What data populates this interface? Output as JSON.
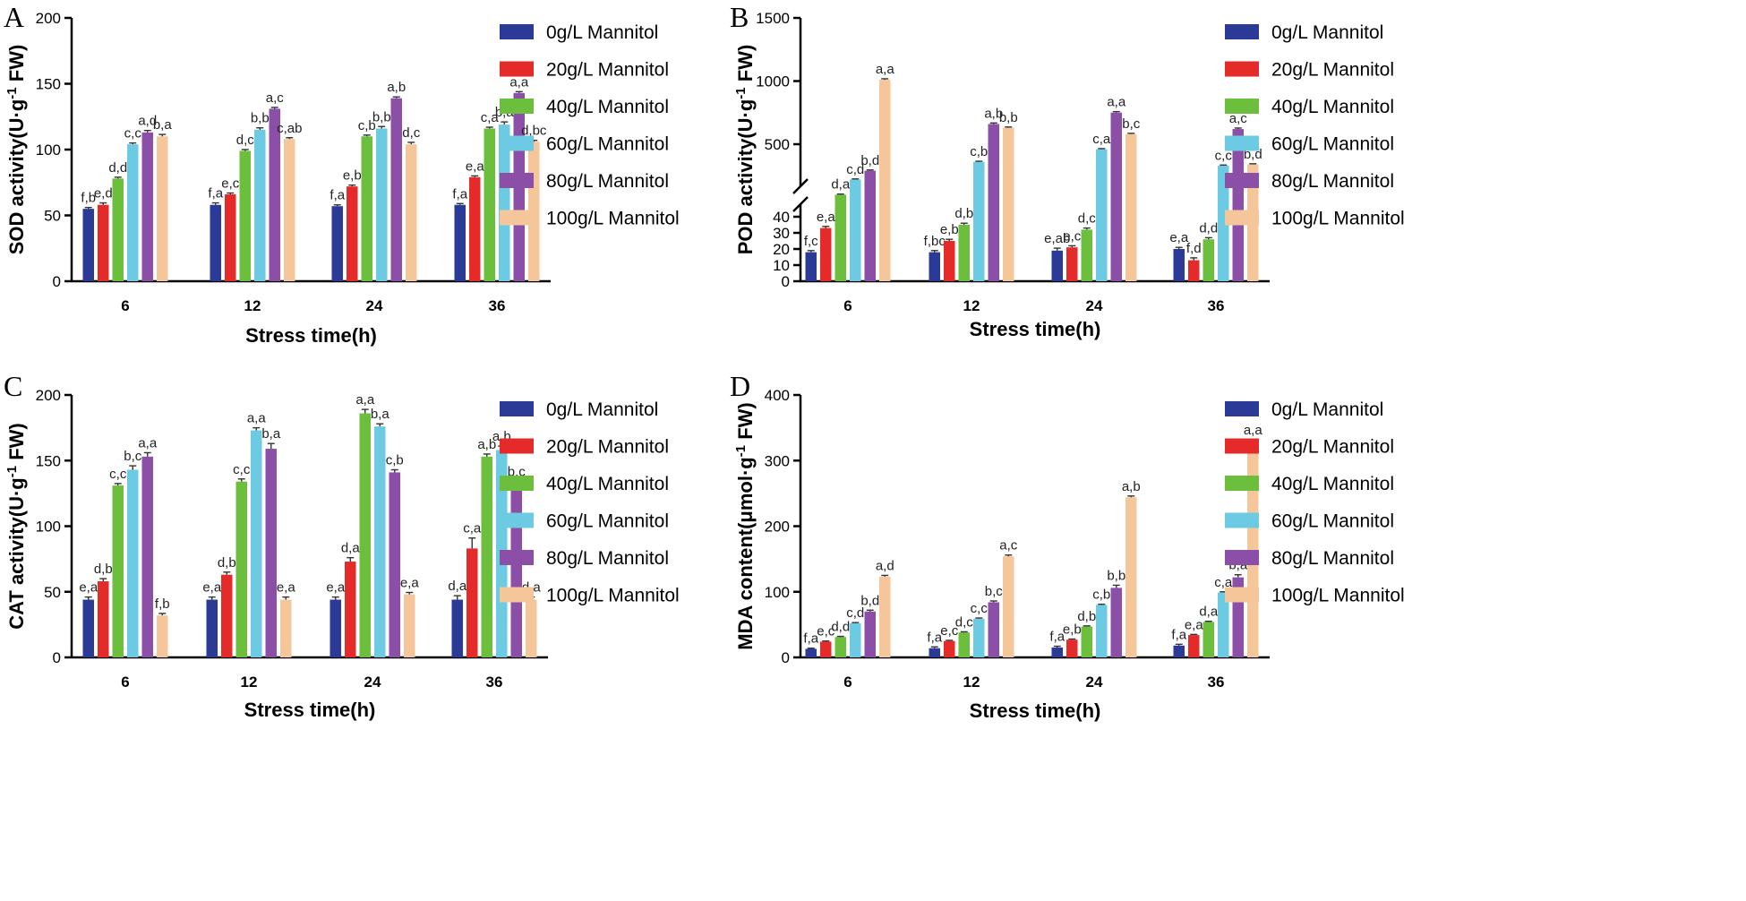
{
  "chart_data": [
    {
      "panel": "A",
      "type": "bar",
      "ylabel": "SOD activity(U·g",
      "ylabel_sup": "-1",
      "ylabel_tail": " FW)",
      "xlabel": "Stress time(h)",
      "categories": [
        "6",
        "12",
        "24",
        "36"
      ],
      "ylim": [
        0,
        200
      ],
      "yticks": [
        "0",
        "50",
        "100",
        "150",
        "200"
      ],
      "series": [
        {
          "name": "0g/L Mannitol",
          "values": [
            55,
            58,
            57,
            58
          ],
          "errors": [
            1,
            1.5,
            1,
            1
          ],
          "labels": [
            "f,b",
            "f,a",
            "f,a",
            "f,a"
          ]
        },
        {
          "name": "20g/L Mannitol",
          "values": [
            58,
            66,
            72,
            79
          ],
          "errors": [
            1.5,
            1,
            1,
            1
          ],
          "labels": [
            "e,d",
            "e,c",
            "e,b",
            "e,a"
          ]
        },
        {
          "name": "40g/L Mannitol",
          "values": [
            78,
            99,
            110,
            116
          ],
          "errors": [
            1,
            1,
            1,
            1
          ],
          "labels": [
            "d,d",
            "d,c",
            "c,b",
            "c,a"
          ]
        },
        {
          "name": "60g/L Mannitol",
          "values": [
            104,
            115,
            116,
            119
          ],
          "errors": [
            1,
            1.5,
            1.5,
            2
          ],
          "labels": [
            "c,c",
            "b,b",
            "b,b",
            "b,a"
          ]
        },
        {
          "name": "80g/L Mannitol",
          "values": [
            113,
            131,
            139,
            143
          ],
          "errors": [
            1.5,
            1,
            1,
            1
          ],
          "labels": [
            "a,d",
            "a,c",
            "a,b",
            "a,a"
          ]
        },
        {
          "name": "100g/L Mannitol",
          "values": [
            110,
            108,
            104,
            106
          ],
          "errors": [
            1.5,
            1,
            1.5,
            1
          ],
          "labels": [
            "b,a",
            "c,ab",
            "d,c",
            "d,bc"
          ]
        }
      ]
    },
    {
      "panel": "B",
      "type": "bar",
      "ylabel": "POD activity(U·g",
      "ylabel_sup": "-1",
      "ylabel_tail": " FW)",
      "xlabel": "Stress time(h)",
      "categories": [
        "6",
        "12",
        "24",
        "36"
      ],
      "ylim": [
        0,
        1500
      ],
      "axis_break": {
        "lower_range": [
          0,
          40
        ],
        "upper_range": [
          40,
          1500
        ]
      },
      "yticks_lower": [
        "0",
        "10",
        "20",
        "30",
        "40"
      ],
      "yticks_upper": [
        "500",
        "1000",
        "1500"
      ],
      "series": [
        {
          "name": "0g/L Mannitol",
          "values": [
            18,
            18,
            19,
            20
          ],
          "errors": [
            1,
            1,
            1.5,
            1
          ],
          "labels": [
            "f,c",
            "f,bc",
            "e,ab",
            "e,a"
          ]
        },
        {
          "name": "20g/L Mannitol",
          "values": [
            33,
            25,
            21,
            13
          ],
          "errors": [
            1,
            1,
            1,
            1.5
          ],
          "labels": [
            "e,a",
            "e,b",
            "e,c",
            "f,d"
          ]
        },
        {
          "name": "40g/L Mannitol",
          "values": [
            100,
            35,
            32,
            26
          ],
          "errors": [
            5,
            1,
            1,
            1
          ],
          "labels": [
            "d,a",
            "d,b",
            "d,c",
            "d,d"
          ]
        },
        {
          "name": "60g/L Mannitol",
          "values": [
            220,
            360,
            460,
            330
          ],
          "errors": [
            5,
            5,
            5,
            5
          ],
          "labels": [
            "c,d",
            "c,b",
            "c,a",
            "c,c"
          ]
        },
        {
          "name": "80g/L Mannitol",
          "values": [
            290,
            660,
            750,
            620
          ],
          "errors": [
            6,
            8,
            8,
            8
          ],
          "labels": [
            "b,d",
            "a,b",
            "a,a",
            "a,c"
          ]
        },
        {
          "name": "100g/L Mannitol",
          "values": [
            1010,
            630,
            580,
            340
          ],
          "errors": [
            8,
            6,
            6,
            5
          ],
          "labels": [
            "a,a",
            "b,b",
            "b,c",
            "b,d"
          ]
        }
      ]
    },
    {
      "panel": "C",
      "type": "bar",
      "ylabel": "CAT activity(U·g",
      "ylabel_sup": "-1",
      "ylabel_tail": " FW)",
      "xlabel": "Stress time(h)",
      "categories": [
        "6",
        "12",
        "24",
        "36"
      ],
      "ylim": [
        0,
        200
      ],
      "yticks": [
        "0",
        "50",
        "100",
        "150",
        "200"
      ],
      "series": [
        {
          "name": "0g/L Mannitol",
          "values": [
            44,
            44,
            44,
            44
          ],
          "errors": [
            2,
            2,
            2,
            3
          ],
          "labels": [
            "e,a",
            "e,a",
            "e,a",
            "d,a"
          ]
        },
        {
          "name": "20g/L Mannitol",
          "values": [
            58,
            63,
            73,
            83
          ],
          "errors": [
            2,
            2,
            3,
            8
          ],
          "labels": [
            "d,b",
            "d,b",
            "d,a",
            "c,a"
          ]
        },
        {
          "name": "40g/L Mannitol",
          "values": [
            131,
            134,
            186,
            153
          ],
          "errors": [
            1.5,
            2,
            3,
            2
          ],
          "labels": [
            "c,c",
            "c,c",
            "a,a",
            "a,b"
          ]
        },
        {
          "name": "60g/L Mannitol",
          "values": [
            143,
            173,
            176,
            158
          ],
          "errors": [
            3,
            2,
            2,
            3
          ],
          "labels": [
            "b,c",
            "a,a",
            "b,a",
            "a,b"
          ]
        },
        {
          "name": "80g/L Mannitol",
          "values": [
            153,
            159,
            141,
            131
          ],
          "errors": [
            3,
            4,
            2,
            3
          ],
          "labels": [
            "a,a",
            "b,a",
            "c,b",
            "b,c"
          ]
        },
        {
          "name": "100g/L Mannitol",
          "values": [
            32,
            44,
            48,
            44
          ],
          "errors": [
            1.5,
            2,
            1.5,
            2
          ],
          "labels": [
            "f,b",
            "e,a",
            "e,a",
            "d,a"
          ]
        }
      ]
    },
    {
      "panel": "D",
      "type": "bar",
      "ylabel": "MDA content(μmol·g",
      "ylabel_sup": "-1",
      "ylabel_tail": " FW)",
      "xlabel": "Stress time(h)",
      "categories": [
        "6",
        "12",
        "24",
        "36"
      ],
      "ylim": [
        0,
        400
      ],
      "yticks": [
        "0",
        "100",
        "200",
        "300",
        "400"
      ],
      "series": [
        {
          "name": "0g/L Mannitol",
          "values": [
            13,
            14,
            15,
            18
          ],
          "errors": [
            1,
            2,
            2,
            2
          ],
          "labels": [
            "f,a",
            "f,a",
            "f,a",
            "f,a"
          ]
        },
        {
          "name": "20g/L Mannitol",
          "values": [
            24,
            25,
            27,
            34
          ],
          "errors": [
            1,
            1,
            1,
            1
          ],
          "labels": [
            "e,c",
            "e,c",
            "e,b",
            "e,a"
          ]
        },
        {
          "name": "40g/L Mannitol",
          "values": [
            31,
            38,
            47,
            54
          ],
          "errors": [
            1,
            1,
            1,
            1
          ],
          "labels": [
            "d,d",
            "d,c",
            "d,b",
            "d,a"
          ]
        },
        {
          "name": "60g/L Mannitol",
          "values": [
            52,
            59,
            80,
            99
          ],
          "errors": [
            1,
            1,
            1,
            1
          ],
          "labels": [
            "c,d",
            "c,c",
            "c,b",
            "c,a"
          ]
        },
        {
          "name": "80g/L Mannitol",
          "values": [
            70,
            84,
            106,
            122
          ],
          "errors": [
            2,
            2,
            4,
            4
          ],
          "labels": [
            "b,d",
            "b,c",
            "b,b",
            "b,a"
          ]
        },
        {
          "name": "100g/L Mannitol",
          "values": [
            123,
            154,
            244,
            325
          ],
          "errors": [
            2,
            2,
            2,
            7
          ],
          "labels": [
            "a,d",
            "a,c",
            "a,b",
            "a,a"
          ]
        }
      ]
    }
  ],
  "legend": {
    "entries": [
      "0g/L Mannitol",
      "20g/L Mannitol",
      "40g/L Mannitol",
      "60g/L Mannitol",
      "80g/L Mannitol",
      "100g/L Mannitol"
    ],
    "colors": [
      "#2b3a96",
      "#e52a2a",
      "#6cbf3c",
      "#6ccbe2",
      "#8b4fa8",
      "#f6c69b"
    ],
    "placement": "right"
  }
}
